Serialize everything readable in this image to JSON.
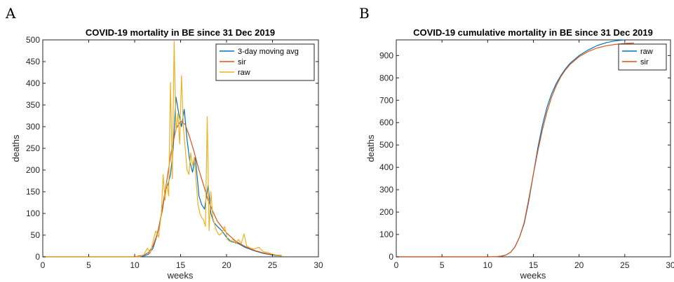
{
  "chart_data": [
    {
      "panel": "A",
      "type": "line",
      "title": "COVID-19 mortality in BE since 31 Dec 2019",
      "xlabel": "weeks",
      "ylabel": "deaths",
      "xlim": [
        0,
        30
      ],
      "ylim": [
        0,
        500
      ],
      "xticks": [
        0,
        5,
        10,
        15,
        20,
        25,
        30
      ],
      "yticks": [
        0,
        50,
        100,
        150,
        200,
        250,
        300,
        350,
        400,
        450,
        500
      ],
      "grid": false,
      "legend_position": "top-right",
      "series": [
        {
          "name": "3-day moving avg",
          "color": "#0072BD",
          "x": [
            0,
            10.5,
            11,
            11.5,
            12,
            12.3,
            12.6,
            13,
            13.3,
            13.6,
            13.9,
            14.2,
            14.5,
            14.8,
            15.1,
            15.4,
            15.7,
            16,
            16.3,
            16.6,
            17,
            17.3,
            17.6,
            18,
            18.3,
            18.6,
            19,
            19.5,
            20,
            20.5,
            21,
            21.5,
            22,
            22.5,
            23,
            24,
            25,
            26
          ],
          "y": [
            0,
            0,
            2,
            6,
            20,
            40,
            65,
            110,
            150,
            165,
            190,
            250,
            368,
            330,
            300,
            340,
            270,
            220,
            195,
            230,
            140,
            120,
            110,
            165,
            100,
            80,
            70,
            60,
            45,
            35,
            33,
            28,
            22,
            18,
            14,
            8,
            4,
            2
          ]
        },
        {
          "name": "sir",
          "color": "#D95319",
          "x": [
            0,
            10,
            11,
            11.5,
            12,
            12.5,
            13,
            13.5,
            14,
            14.5,
            15,
            15.5,
            16,
            16.5,
            17,
            17.5,
            18,
            18.5,
            19,
            20,
            21,
            22,
            23,
            24,
            25,
            26
          ],
          "y": [
            0,
            0,
            4,
            10,
            25,
            55,
            105,
            175,
            245,
            295,
            313,
            305,
            275,
            240,
            200,
            165,
            130,
            105,
            82,
            55,
            36,
            24,
            15,
            9,
            5,
            3
          ]
        },
        {
          "name": "raw",
          "color": "#EDB120",
          "x": [
            0,
            10.5,
            11,
            11.4,
            11.7,
            12,
            12.3,
            12.6,
            12.9,
            13.1,
            13.3,
            13.5,
            13.7,
            13.9,
            14.1,
            14.3,
            14.5,
            14.7,
            14.9,
            15.1,
            15.3,
            15.5,
            15.7,
            15.9,
            16.1,
            16.3,
            16.5,
            16.7,
            16.9,
            17.1,
            17.3,
            17.5,
            17.7,
            17.9,
            18.1,
            18.3,
            18.5,
            18.7,
            18.9,
            19.2,
            19.5,
            19.8,
            20.1,
            20.4,
            20.7,
            21,
            21.3,
            21.6,
            21.9,
            22.2,
            22.6,
            23,
            23.5,
            24,
            24.5,
            25,
            25.5,
            26
          ],
          "y": [
            0,
            0,
            5,
            20,
            8,
            35,
            60,
            45,
            100,
            190,
            130,
            170,
            140,
            402,
            180,
            497,
            290,
            330,
            260,
            418,
            300,
            250,
            200,
            190,
            240,
            210,
            230,
            170,
            120,
            100,
            90,
            85,
            70,
            323,
            60,
            150,
            90,
            75,
            60,
            50,
            55,
            70,
            40,
            35,
            40,
            30,
            40,
            30,
            53,
            25,
            20,
            18,
            22,
            12,
            10,
            6,
            4,
            2
          ]
        }
      ]
    },
    {
      "panel": "B",
      "type": "line",
      "title": "COVID-19 cumulative mortality in BE since 31 Dec 2019",
      "xlabel": "weeks",
      "ylabel": "deaths",
      "xlim": [
        0,
        30
      ],
      "ylim": [
        0,
        970
      ],
      "xticks": [
        0,
        5,
        10,
        15,
        20,
        25,
        30
      ],
      "yticks": [
        0,
        100,
        200,
        300,
        400,
        500,
        600,
        700,
        800,
        900
      ],
      "grid": false,
      "legend_position": "top-right",
      "series": [
        {
          "name": "raw",
          "color": "#0072BD",
          "x": [
            0,
            10,
            11,
            11.5,
            12,
            12.5,
            13,
            13.5,
            14,
            14.5,
            15,
            15.5,
            16,
            16.5,
            17,
            17.5,
            18,
            18.5,
            19,
            20,
            21,
            22,
            23,
            24,
            25
          ],
          "y": [
            0,
            0,
            1,
            3,
            8,
            20,
            45,
            90,
            150,
            250,
            370,
            490,
            590,
            670,
            730,
            775,
            810,
            840,
            865,
            900,
            925,
            945,
            958,
            966,
            970
          ]
        },
        {
          "name": "sir",
          "color": "#D95319",
          "x": [
            0,
            10,
            11,
            11.5,
            12,
            12.5,
            13,
            13.5,
            14,
            14.5,
            15,
            15.5,
            16,
            16.5,
            17,
            17.5,
            18,
            18.5,
            19,
            20,
            21,
            22,
            23,
            24,
            25,
            26
          ],
          "y": [
            0,
            0,
            1,
            3,
            8,
            20,
            45,
            90,
            155,
            260,
            370,
            475,
            570,
            650,
            715,
            765,
            805,
            835,
            860,
            895,
            918,
            934,
            944,
            950,
            954,
            956
          ]
        }
      ]
    }
  ]
}
